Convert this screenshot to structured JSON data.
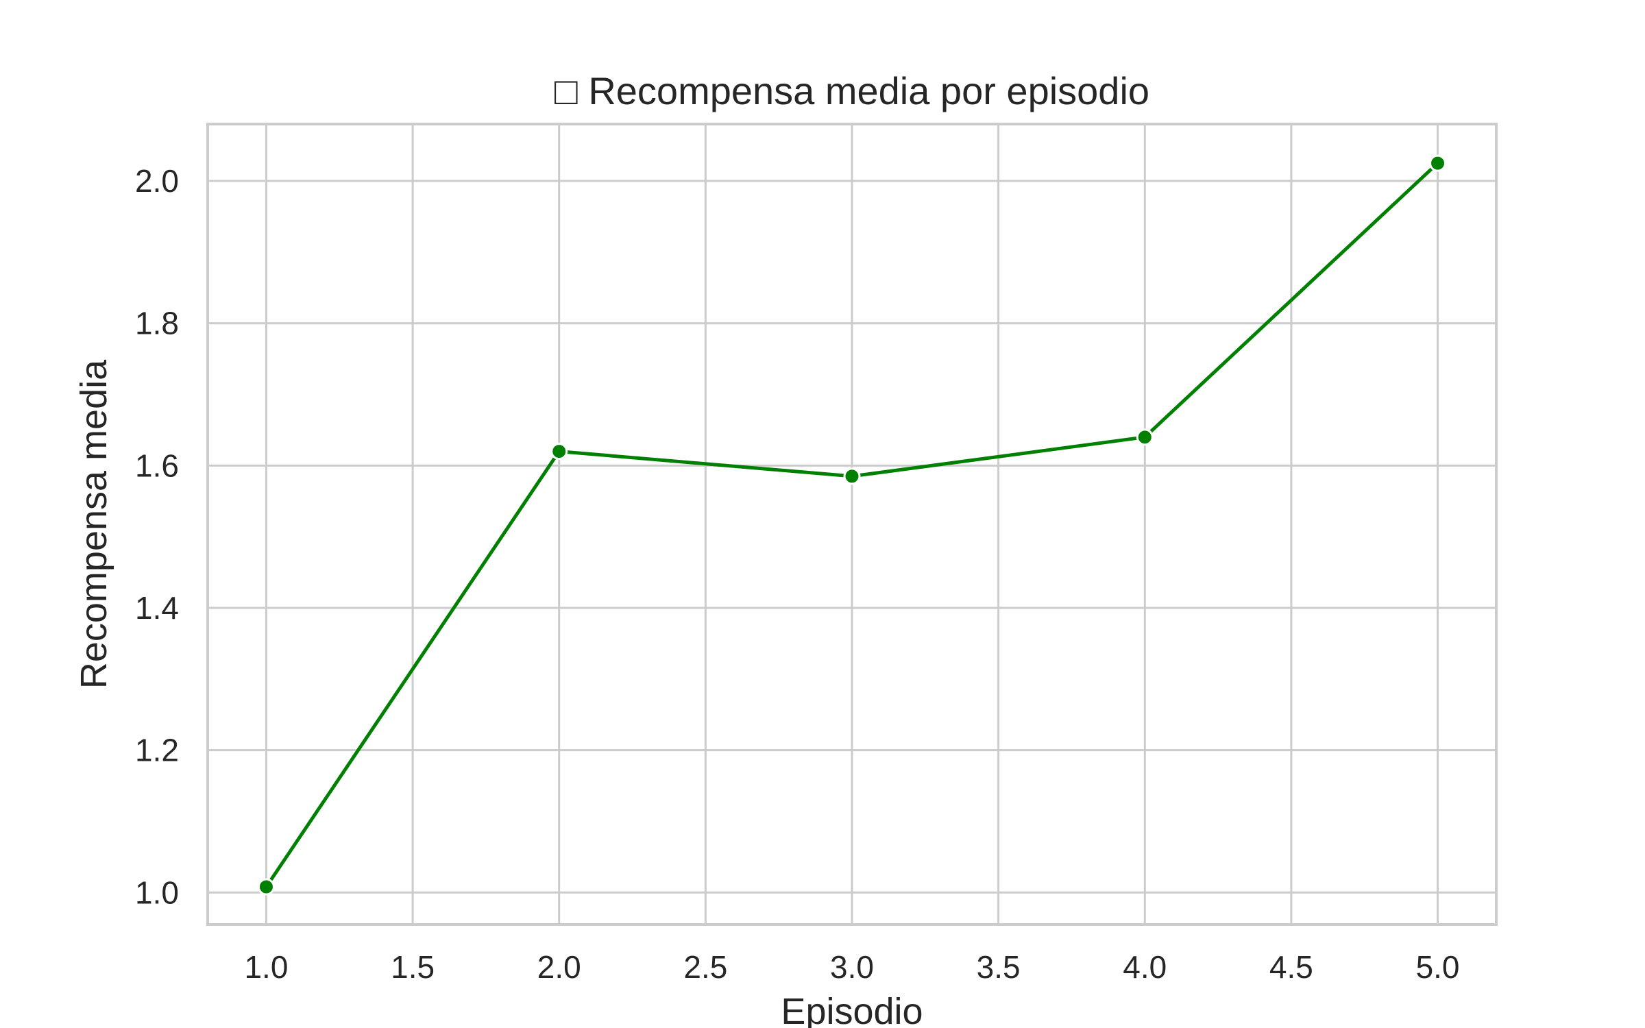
{
  "chart_data": {
    "type": "line",
    "title": "□ Recompensa media por episodio",
    "xlabel": "Episodio",
    "ylabel": "Recompensa media",
    "xlim": [
      0.8,
      5.2
    ],
    "ylim": [
      0.955,
      2.08
    ],
    "x_ticks": [
      1.0,
      1.5,
      2.0,
      2.5,
      3.0,
      3.5,
      4.0,
      4.5,
      5.0
    ],
    "y_ticks": [
      1.0,
      1.2,
      1.4,
      1.6,
      1.8,
      2.0
    ],
    "x_tick_labels": [
      "1.0",
      "1.5",
      "2.0",
      "2.5",
      "3.0",
      "3.5",
      "4.0",
      "4.5",
      "5.0"
    ],
    "y_tick_labels": [
      "1.0",
      "1.2",
      "1.4",
      "1.6",
      "1.8",
      "2.0"
    ],
    "grid": true,
    "series": [
      {
        "color": "#008000",
        "marker": "circle",
        "x": [
          1,
          2,
          3,
          4,
          5
        ],
        "y": [
          1.008,
          1.62,
          1.585,
          1.64,
          2.025
        ]
      }
    ]
  }
}
